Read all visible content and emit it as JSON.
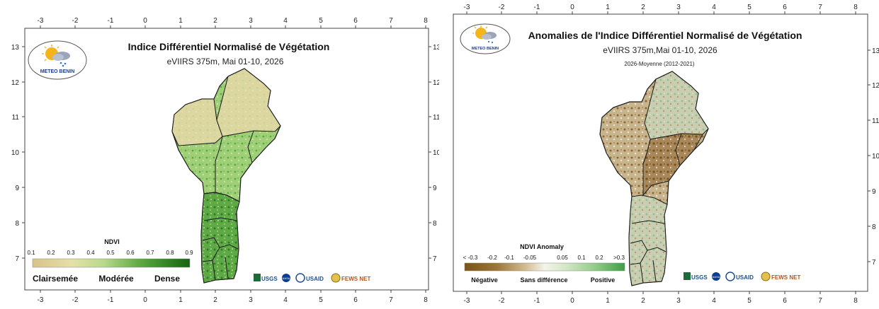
{
  "maps": [
    {
      "title": "Indice Différentiel Normalisé de Végétation",
      "subtitle": "eVIIRS 375m, Mai 01-10, 2026",
      "sub_subtitle": "",
      "logo_text": "METEO BENIN",
      "x_ticks": [
        "-3",
        "-2",
        "-1",
        "0",
        "1",
        "2",
        "3",
        "4",
        "5",
        "6",
        "7",
        "8"
      ],
      "y_ticks": [
        "13",
        "12",
        "11",
        "10",
        "9",
        "8",
        "7"
      ],
      "legend": {
        "title": "NDVI",
        "ticks": [
          "0.1",
          "0.2",
          "0.3",
          "0.4",
          "0.5",
          "0.6",
          "0.7",
          "0.8",
          "0.9"
        ],
        "categories": [
          "Clairsemée",
          "Modérée",
          "Dense"
        ],
        "colors": [
          "#d9c38a",
          "#e5e0a8",
          "#c8dd9a",
          "#a5cf7b",
          "#7fbe55",
          "#58a63c",
          "#3a8f2a",
          "#237a1d",
          "#146512"
        ]
      },
      "partners": [
        "USGS",
        "NASA",
        "USAID",
        "FEWS NET"
      ]
    },
    {
      "title": "Anomalies de l'Indice Différentiel Normalisé de Végétation",
      "subtitle": "eVIIRS 375m,Mai 01-10, 2026",
      "sub_subtitle": "2026-Moyenne (2012-2021)",
      "logo_text": "METEO BENIN",
      "x_ticks": [
        "-3",
        "-2",
        "-1",
        "0",
        "1",
        "2",
        "3",
        "4",
        "5",
        "6",
        "7",
        "8"
      ],
      "y_ticks": [
        "13",
        "12",
        "11",
        "10",
        "9",
        "8",
        "7"
      ],
      "legend": {
        "title": "NDVI Anomaly",
        "ticks": [
          "< -0.3",
          "-0.2",
          "-0.1",
          "-0.05",
          "0.05",
          "0.1",
          "0.2",
          ">0.3"
        ],
        "categories": [
          "Négative",
          "Sans différence",
          "Positive"
        ],
        "colors": [
          "#7a5418",
          "#9c7538",
          "#c3a572",
          "#e3d3b0",
          "#f4f4ea",
          "#cfe5c0",
          "#8fcb85",
          "#3f9e45"
        ]
      },
      "partners": [
        "USGS",
        "NASA",
        "USAID",
        "FEWS NET"
      ]
    }
  ],
  "colors": {
    "map_left_fill": "#a9d47f",
    "map_right_fill": "#b9a177",
    "boundary": "#1a1a1a"
  }
}
